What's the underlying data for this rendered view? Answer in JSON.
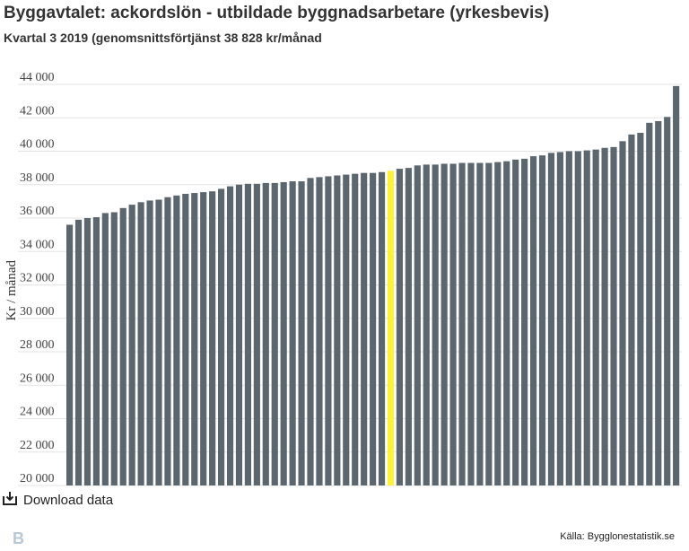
{
  "header": {
    "title": "Byggavtalet: ackordslön - utbildade byggnadsarbetare (yrkesbevis)",
    "subtitle": "Kvartal 3 2019 (genomsnittsförtjänst 38 828 kr/månad"
  },
  "footer": {
    "download_label": "Download data",
    "source": "Källa: Bygglonestatistik.se",
    "logo_letter": "B",
    "download_icon": "download-icon"
  },
  "colors": {
    "bar": "#5b666e",
    "highlight": "#fff03a",
    "grid": "#e3e3e3"
  },
  "chart_data": {
    "type": "bar",
    "title": "Byggavtalet: ackordslön - utbildade byggnadsarbetare (yrkesbevis)",
    "subtitle": "Kvartal 3 2019 (genomsnittsförtjänst 38 828 kr/månad",
    "ylabel": "Kr / månad",
    "xlabel": "",
    "ylim": [
      20000,
      44000
    ],
    "yticks": [
      20000,
      22000,
      24000,
      26000,
      28000,
      30000,
      32000,
      34000,
      36000,
      38000,
      40000,
      42000,
      44000
    ],
    "ytick_labels": [
      "20 000",
      "22 000",
      "24 000",
      "26 000",
      "28 000",
      "30 000",
      "32 000",
      "34 000",
      "36 000",
      "38 000",
      "40 000",
      "42 000",
      "44 000"
    ],
    "grid": true,
    "highlight_index": 36,
    "values": [
      35600,
      35900,
      36000,
      36050,
      36300,
      36350,
      36600,
      36800,
      36950,
      37050,
      37100,
      37250,
      37350,
      37450,
      37500,
      37550,
      37600,
      37750,
      37900,
      38000,
      38050,
      38050,
      38100,
      38100,
      38150,
      38200,
      38200,
      38400,
      38450,
      38500,
      38550,
      38600,
      38650,
      38700,
      38700,
      38750,
      38828,
      38950,
      39000,
      39150,
      39200,
      39200,
      39250,
      39250,
      39300,
      39300,
      39300,
      39300,
      39350,
      39400,
      39500,
      39550,
      39700,
      39750,
      39900,
      39950,
      40000,
      40000,
      40050,
      40100,
      40200,
      40250,
      40600,
      41000,
      41100,
      41700,
      41800,
      42050,
      43900
    ]
  }
}
